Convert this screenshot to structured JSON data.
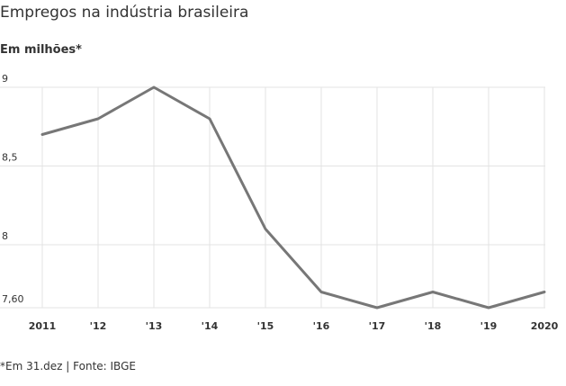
{
  "chart_data": {
    "type": "line",
    "title": "Empregos na indústria brasileira",
    "subtitle": "Em milhões*",
    "categories": [
      "2011",
      "'12",
      "'13",
      "'14",
      "'15",
      "'16",
      "'17",
      "'18",
      "'19",
      "2020"
    ],
    "series": [
      {
        "values": [
          8.7,
          8.8,
          9.0,
          8.8,
          8.1,
          7.7,
          7.6,
          7.7,
          7.6,
          7.7
        ]
      }
    ],
    "yticks": [
      {
        "value": 9,
        "label": "9"
      },
      {
        "value": 8.5,
        "label": "8,5"
      },
      {
        "value": 8,
        "label": "8"
      },
      {
        "value": 7.6,
        "label": "7,60"
      }
    ],
    "ylim": [
      7.6,
      9
    ],
    "grid": true,
    "line_color": "#777777",
    "grid_color": "#e3e3e3",
    "footnote": "*Em 31.dez | Fonte: IBGE"
  }
}
